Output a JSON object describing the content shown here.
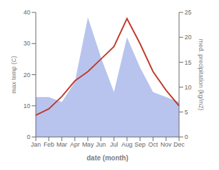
{
  "chart_data": {
    "type": "line",
    "xlabel": "date (month)",
    "ylabel": "max temp (C)",
    "y2label": "med. precipitation (kg/m2)",
    "categories": [
      "Jan",
      "Feb",
      "Mar",
      "Apr",
      "May",
      "Jun",
      "Jul",
      "Aug",
      "Sep",
      "Oct",
      "Nov",
      "Dec"
    ],
    "series": [
      {
        "type": "area",
        "color": "#b8c4ee",
        "axis": "y2",
        "values": [
          8,
          8,
          7,
          11,
          24,
          16,
          9,
          20,
          14,
          9,
          8,
          7
        ]
      },
      {
        "type": "line",
        "color": "#c0392b",
        "values": [
          7,
          9,
          13,
          18,
          21,
          25,
          29,
          38,
          30,
          21,
          15,
          10
        ]
      }
    ],
    "ylim": [
      0,
      40
    ],
    "yticks": [
      0,
      10,
      20,
      30,
      40
    ],
    "y2lim": [
      0,
      25
    ],
    "y2ticks": [
      0,
      5,
      10,
      15,
      20,
      25
    ]
  }
}
